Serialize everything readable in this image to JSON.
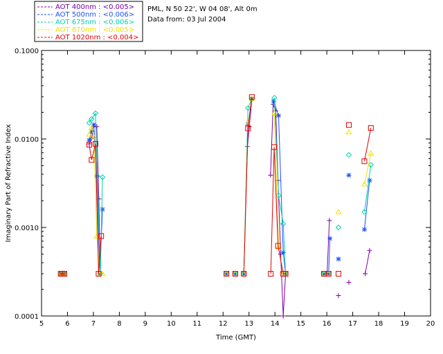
{
  "chart_data": {
    "type": "scatter",
    "title": "",
    "info_lines": [
      "PML, N 50 22', W 04 08', Alt 0m",
      "Data from: 03 Jul 2004"
    ],
    "xlabel": "Time (GMT)",
    "ylabel": "Imaginary Part of Refractive Index",
    "xlim": [
      5,
      20
    ],
    "ylim": [
      0.0001,
      0.1
    ],
    "yscale": "log",
    "x_ticks": [
      "5",
      "6",
      "7",
      "8",
      "9",
      "10",
      "11",
      "12",
      "13",
      "14",
      "15",
      "16",
      "17",
      "18",
      "19",
      "20"
    ],
    "y_ticks": [
      "0.0001",
      "0.0010",
      "0.0100",
      "0.1000"
    ],
    "grid": false,
    "legend_position": "top-left",
    "series": [
      {
        "name": "AOT  400nm : <0.005>",
        "color": "#7b00a8",
        "marker": "plus",
        "points": [
          [
            5.74,
            0.0003
          ],
          [
            5.81,
            0.0003
          ],
          [
            5.88,
            0.0003
          ],
          [
            6.84,
            0.0088
          ],
          [
            6.93,
            0.0102
          ],
          [
            7.02,
            0.0137
          ],
          [
            7.13,
            0.0138
          ],
          [
            7.21,
            0.0021
          ],
          [
            7.27,
            0.0003
          ],
          [
            12.13,
            0.0003
          ],
          [
            12.47,
            0.0003
          ],
          [
            12.8,
            0.0003
          ],
          [
            12.94,
            0.0082
          ],
          [
            13.01,
            0.0138
          ],
          [
            13.11,
            0.0282
          ],
          [
            13.83,
            0.0039
          ],
          [
            13.93,
            0.0246
          ],
          [
            14.03,
            0.0208
          ],
          [
            14.12,
            0.0034
          ],
          [
            14.22,
            0.0005
          ],
          [
            14.32,
            0.0001
          ],
          [
            14.41,
            0.0003
          ],
          [
            15.87,
            0.0003
          ],
          [
            16.01,
            0.0003
          ],
          [
            16.1,
            0.0012
          ],
          [
            16.45,
            0.00017
          ],
          [
            16.85,
            0.00024
          ],
          [
            17.48,
            0.0003
          ],
          [
            17.65,
            0.00055
          ]
        ]
      },
      {
        "name": "AOT  500nm : <0.006>",
        "color": "#1a4fff",
        "marker": "asterisk",
        "points": [
          [
            5.74,
            0.0003
          ],
          [
            5.81,
            0.0003
          ],
          [
            5.88,
            0.0003
          ],
          [
            6.84,
            0.0097
          ],
          [
            6.93,
            0.0121
          ],
          [
            7.02,
            0.0145
          ],
          [
            7.13,
            0.0038
          ],
          [
            7.25,
            0.0003
          ],
          [
            7.35,
            0.0016
          ],
          [
            12.13,
            0.0003
          ],
          [
            12.47,
            0.0003
          ],
          [
            12.8,
            0.0003
          ],
          [
            12.96,
            0.0147
          ],
          [
            13.11,
            0.0284
          ],
          [
            13.95,
            0.0268
          ],
          [
            14.14,
            0.0183
          ],
          [
            14.32,
            0.00052
          ],
          [
            14.41,
            0.0003
          ],
          [
            15.89,
            0.0003
          ],
          [
            16.07,
            0.0003
          ],
          [
            16.12,
            0.00075
          ],
          [
            16.45,
            0.00044
          ],
          [
            16.85,
            0.0039
          ],
          [
            17.45,
            0.00095
          ],
          [
            17.65,
            0.0034
          ]
        ]
      },
      {
        "name": "AOT  675nm : <0.006>",
        "color": "#00d0b0",
        "marker": "diamond",
        "points": [
          [
            5.74,
            0.0003
          ],
          [
            5.81,
            0.0003
          ],
          [
            5.88,
            0.0003
          ],
          [
            6.84,
            0.0152
          ],
          [
            6.93,
            0.0168
          ],
          [
            7.08,
            0.0195
          ],
          [
            7.15,
            0.0038
          ],
          [
            7.27,
            0.0003
          ],
          [
            7.35,
            0.0037
          ],
          [
            12.13,
            0.0003
          ],
          [
            12.47,
            0.0003
          ],
          [
            12.8,
            0.0003
          ],
          [
            12.96,
            0.0223
          ],
          [
            13.11,
            0.0285
          ],
          [
            13.98,
            0.0292
          ],
          [
            14.14,
            0.0023
          ],
          [
            14.32,
            0.0011
          ],
          [
            14.41,
            0.0003
          ],
          [
            15.89,
            0.0003
          ],
          [
            16.07,
            0.0003
          ],
          [
            16.45,
            0.001
          ],
          [
            16.85,
            0.0066
          ],
          [
            17.45,
            0.0015
          ],
          [
            17.7,
            0.0051
          ]
        ]
      },
      {
        "name": "AOT  870nm : <0.005>",
        "color": "#f0e000",
        "marker": "triangle",
        "points": [
          [
            5.74,
            0.0003
          ],
          [
            5.81,
            0.0003
          ],
          [
            5.88,
            0.0003
          ],
          [
            6.84,
            0.0113
          ],
          [
            6.93,
            0.0135
          ],
          [
            7.02,
            0.0105
          ],
          [
            7.13,
            0.0008
          ],
          [
            7.25,
            0.0003
          ],
          [
            7.35,
            0.0003
          ],
          [
            12.13,
            0.0003
          ],
          [
            12.47,
            0.0003
          ],
          [
            12.8,
            0.0003
          ],
          [
            12.96,
            0.0148
          ],
          [
            13.11,
            0.0287
          ],
          [
            13.98,
            0.0197
          ],
          [
            14.14,
            0.0006
          ],
          [
            14.32,
            0.0003
          ],
          [
            14.41,
            0.0003
          ],
          [
            15.89,
            0.0003
          ],
          [
            16.07,
            0.0003
          ],
          [
            16.45,
            0.0015
          ],
          [
            16.85,
            0.012
          ],
          [
            17.45,
            0.0031
          ],
          [
            17.7,
            0.0069
          ]
        ]
      },
      {
        "name": "AOT 1020nm : <0.004>",
        "color": "#e00000",
        "marker": "square",
        "points": [
          [
            5.74,
            0.0003
          ],
          [
            5.81,
            0.0003
          ],
          [
            5.88,
            0.0003
          ],
          [
            6.84,
            0.0086
          ],
          [
            6.93,
            0.0058
          ],
          [
            7.08,
            0.0088
          ],
          [
            7.2,
            0.0003
          ],
          [
            7.3,
            0.0008
          ],
          [
            12.13,
            0.0003
          ],
          [
            12.47,
            0.0003
          ],
          [
            12.8,
            0.0003
          ],
          [
            12.96,
            0.0132
          ],
          [
            13.11,
            0.0298
          ],
          [
            13.84,
            0.0003
          ],
          [
            13.97,
            0.0081
          ],
          [
            14.12,
            0.00062
          ],
          [
            14.32,
            0.0003
          ],
          [
            14.41,
            0.0003
          ],
          [
            15.89,
            0.0003
          ],
          [
            16.07,
            0.0003
          ],
          [
            16.45,
            0.0003
          ],
          [
            16.85,
            0.0144
          ],
          [
            17.45,
            0.0056
          ],
          [
            17.7,
            0.0133
          ]
        ]
      }
    ]
  }
}
